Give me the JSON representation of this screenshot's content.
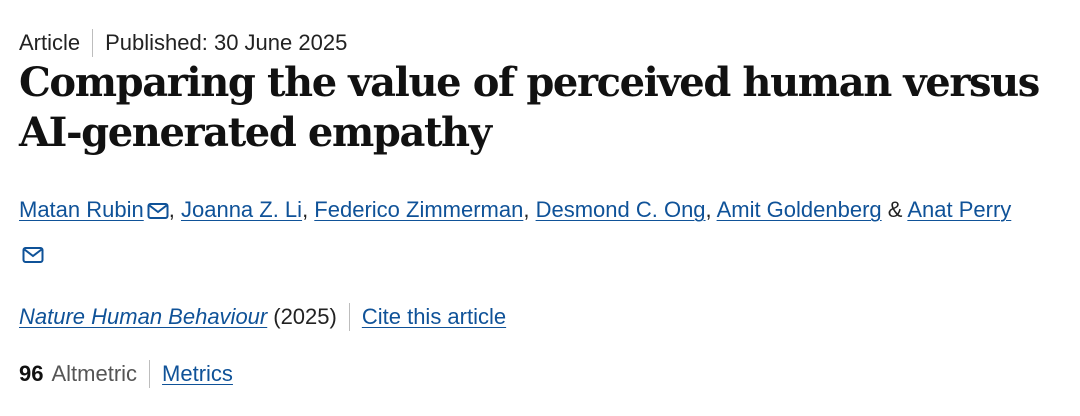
{
  "article": {
    "type": "Article",
    "published": "Published: 30 June 2025",
    "title": "Comparing the value of perceived human versus AI-generated empathy",
    "authors": [
      {
        "name": "Matan Rubin",
        "mail": true
      },
      {
        "name": "Joanna Z. Li",
        "mail": false
      },
      {
        "name": "Federico Zimmerman",
        "mail": false
      },
      {
        "name": "Desmond C. Ong",
        "mail": false
      },
      {
        "name": "Amit Goldenberg",
        "mail": false
      },
      {
        "name": "Anat Perry",
        "mail": true
      }
    ],
    "separator": ", ",
    "last_separator": " & ",
    "journal": "Nature Human Behaviour",
    "year": "(2025)",
    "cite_label": "Cite this article",
    "altmetric_count": "96",
    "altmetric_label": "Altmetric",
    "metrics_label": "Metrics"
  },
  "colors": {
    "link": "#0f5298",
    "text": "#222222",
    "divider": "#bdbdbd"
  },
  "icons": {
    "mail": "envelope-icon"
  }
}
